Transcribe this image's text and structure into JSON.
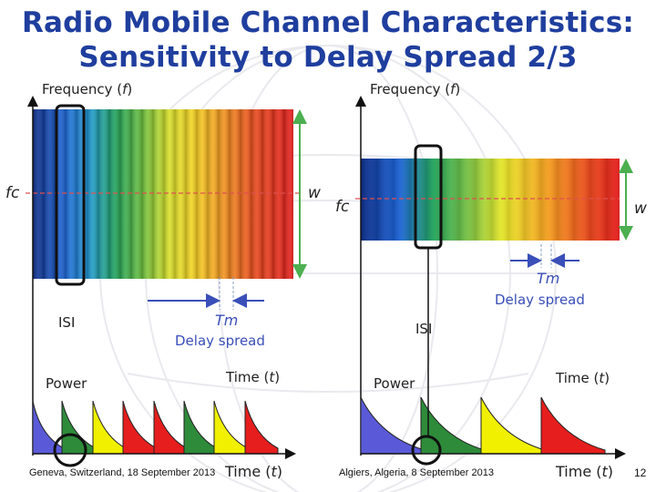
{
  "title": {
    "line1": "Radio Mobile Channel Characteristics:",
    "line2": "Sensitivity to Delay Spread  2/3"
  },
  "left": {
    "freq_label": "Frequency (",
    "freq_var": "f",
    "freq_close": ")",
    "fc_label": "fc",
    "w_label": "w",
    "tm_label": "Tm",
    "delay_label": "Delay spread",
    "isi_label": "ISI",
    "power_label": "Power",
    "time_label": "Time (",
    "time_var": "t",
    "time_close": ")",
    "time_bottom_label": "Time (",
    "time_bottom_var": "t",
    "time_bottom_close": ")",
    "footer": "Geneva, Switzerland, 18 September 2013"
  },
  "right": {
    "freq_label": "Frequency (",
    "freq_var": "f",
    "freq_close": ")",
    "fc_label": "fc",
    "w_label": "w",
    "tm_label": "Tm",
    "delay_label": "Delay spread",
    "isi_label": "ISI",
    "power_label": "Power",
    "time_label": "Time (",
    "time_var": "t",
    "time_close": ")",
    "time_bottom_label": "Time (",
    "time_bottom_var": "t",
    "time_bottom_close": ")",
    "footer": "Algiers, Algeria, 8 September 2013"
  },
  "page_number": "12",
  "colors": {
    "title": "#1f3e9e",
    "arrow_blue": "#3a4fb8",
    "green_arrow": "#4caf50",
    "pulse_blue": "#5a5ad8",
    "pulse_green": "#2e8b3a",
    "pulse_yellow": "#f0f000",
    "pulse_red": "#e61e1e",
    "spectrum": [
      "#0b2e8a",
      "#1a5fd0",
      "#1f8fbf",
      "#2aa05a",
      "#7cc242",
      "#f2e21a",
      "#f59a1c",
      "#e8381c"
    ]
  }
}
